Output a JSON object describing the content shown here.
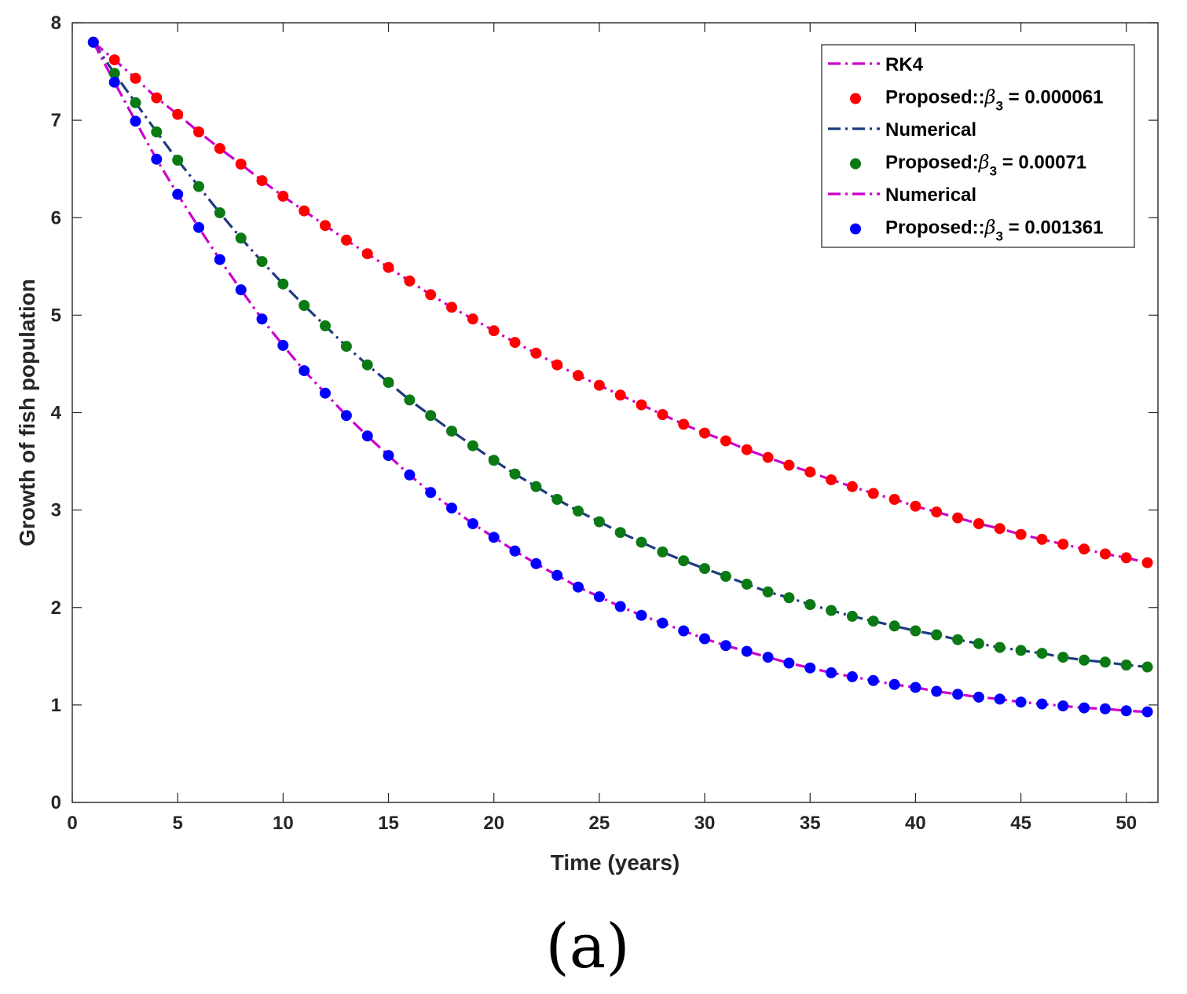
{
  "colors": {
    "magenta": "#CC00CC",
    "navy": "#1F3A80",
    "red": "#FF0000",
    "green": "#0B7A14",
    "blue": "#0000FF",
    "axis": "#262626"
  },
  "caption": "(a)",
  "chart_data": {
    "type": "line",
    "title": "",
    "xlabel": "Time (years)",
    "ylabel": "Growth of fish population",
    "xlim": [
      0,
      51.5
    ],
    "ylim": [
      0,
      8
    ],
    "xticks": [
      0,
      5,
      10,
      15,
      20,
      25,
      30,
      35,
      40,
      45,
      50
    ],
    "yticks": [
      0,
      1,
      2,
      3,
      4,
      5,
      6,
      7,
      8
    ],
    "grid": false,
    "legend_position": "top-right",
    "legend": [
      {
        "label": "RK4",
        "kind": "line",
        "color": "magenta",
        "dash": "dashdot"
      },
      {
        "label": "Proposed::",
        "beta": "β",
        "sub": "3",
        "value": " = 0.000061",
        "kind": "marker",
        "color": "red"
      },
      {
        "label": "Numerical",
        "kind": "line",
        "color": "navy",
        "dash": "dashdot"
      },
      {
        "label": "Proposed:",
        "beta": "β",
        "sub": "3",
        "value": " = 0.00071",
        "kind": "marker",
        "color": "green"
      },
      {
        "label": "Numerical",
        "kind": "line",
        "color": "magenta",
        "dash": "dashdot"
      },
      {
        "label": "Proposed::",
        "beta": "β",
        "sub": "3",
        "value": " = 0.001361",
        "kind": "marker",
        "color": "blue"
      }
    ],
    "x": [
      1,
      2,
      3,
      4,
      5,
      6,
      7,
      8,
      9,
      10,
      11,
      12,
      13,
      14,
      15,
      16,
      17,
      18,
      19,
      20,
      21,
      22,
      23,
      24,
      25,
      26,
      27,
      28,
      29,
      30,
      31,
      32,
      33,
      34,
      35,
      36,
      37,
      38,
      39,
      40,
      41,
      42,
      43,
      44,
      45,
      46,
      47,
      48,
      49,
      50,
      51
    ],
    "series": [
      {
        "name": "RK4",
        "kind": "line",
        "color": "magenta",
        "dash": "dashdot",
        "values": [
          7.8,
          7.62,
          7.43,
          7.23,
          7.06,
          6.88,
          6.71,
          6.55,
          6.38,
          6.22,
          6.07,
          5.92,
          5.77,
          5.63,
          5.49,
          5.35,
          5.21,
          5.08,
          4.96,
          4.84,
          4.72,
          4.61,
          4.49,
          4.38,
          4.28,
          4.18,
          4.08,
          3.98,
          3.88,
          3.79,
          3.71,
          3.62,
          3.54,
          3.46,
          3.39,
          3.31,
          3.24,
          3.17,
          3.11,
          3.04,
          2.98,
          2.92,
          2.86,
          2.81,
          2.75,
          2.7,
          2.65,
          2.6,
          2.55,
          2.51,
          2.46
        ]
      },
      {
        "name": "Proposed::β3 = 0.000061",
        "kind": "marker",
        "color": "red",
        "values": [
          7.8,
          7.62,
          7.43,
          7.23,
          7.06,
          6.88,
          6.71,
          6.55,
          6.38,
          6.22,
          6.07,
          5.92,
          5.77,
          5.63,
          5.49,
          5.35,
          5.21,
          5.08,
          4.96,
          4.84,
          4.72,
          4.61,
          4.49,
          4.38,
          4.28,
          4.18,
          4.08,
          3.98,
          3.88,
          3.79,
          3.71,
          3.62,
          3.54,
          3.46,
          3.39,
          3.31,
          3.24,
          3.17,
          3.11,
          3.04,
          2.98,
          2.92,
          2.86,
          2.81,
          2.75,
          2.7,
          2.65,
          2.6,
          2.55,
          2.51,
          2.46
        ]
      },
      {
        "name": "Numerical",
        "kind": "line",
        "color": "navy",
        "dash": "dashdot",
        "values": [
          7.8,
          7.48,
          7.18,
          6.88,
          6.59,
          6.32,
          6.05,
          5.79,
          5.55,
          5.32,
          5.1,
          4.89,
          4.68,
          4.49,
          4.31,
          4.13,
          3.97,
          3.81,
          3.66,
          3.51,
          3.37,
          3.24,
          3.11,
          2.99,
          2.88,
          2.77,
          2.67,
          2.57,
          2.48,
          2.4,
          2.32,
          2.24,
          2.16,
          2.1,
          2.03,
          1.97,
          1.91,
          1.86,
          1.81,
          1.76,
          1.72,
          1.67,
          1.63,
          1.59,
          1.56,
          1.53,
          1.49,
          1.46,
          1.44,
          1.41,
          1.39
        ]
      },
      {
        "name": "Proposed:β3 = 0.00071",
        "kind": "marker",
        "color": "green",
        "values": [
          7.8,
          7.48,
          7.18,
          6.88,
          6.59,
          6.32,
          6.05,
          5.79,
          5.55,
          5.32,
          5.1,
          4.89,
          4.68,
          4.49,
          4.31,
          4.13,
          3.97,
          3.81,
          3.66,
          3.51,
          3.37,
          3.24,
          3.11,
          2.99,
          2.88,
          2.77,
          2.67,
          2.57,
          2.48,
          2.4,
          2.32,
          2.24,
          2.16,
          2.1,
          2.03,
          1.97,
          1.91,
          1.86,
          1.81,
          1.76,
          1.72,
          1.67,
          1.63,
          1.59,
          1.56,
          1.53,
          1.49,
          1.46,
          1.44,
          1.41,
          1.39
        ]
      },
      {
        "name": "Numerical",
        "kind": "line",
        "color": "magenta",
        "dash": "dashdot",
        "values": [
          7.8,
          7.39,
          6.99,
          6.6,
          6.24,
          5.9,
          5.57,
          5.26,
          4.96,
          4.69,
          4.43,
          4.2,
          3.97,
          3.76,
          3.56,
          3.36,
          3.18,
          3.02,
          2.86,
          2.72,
          2.58,
          2.45,
          2.33,
          2.21,
          2.11,
          2.01,
          1.92,
          1.84,
          1.76,
          1.68,
          1.61,
          1.55,
          1.49,
          1.43,
          1.38,
          1.33,
          1.29,
          1.25,
          1.21,
          1.18,
          1.14,
          1.11,
          1.08,
          1.06,
          1.03,
          1.01,
          0.99,
          0.97,
          0.96,
          0.94,
          0.93
        ]
      },
      {
        "name": "Proposed::β3 = 0.001361",
        "kind": "marker",
        "color": "blue",
        "values": [
          7.8,
          7.39,
          6.99,
          6.6,
          6.24,
          5.9,
          5.57,
          5.26,
          4.96,
          4.69,
          4.43,
          4.2,
          3.97,
          3.76,
          3.56,
          3.36,
          3.18,
          3.02,
          2.86,
          2.72,
          2.58,
          2.45,
          2.33,
          2.21,
          2.11,
          2.01,
          1.92,
          1.84,
          1.76,
          1.68,
          1.61,
          1.55,
          1.49,
          1.43,
          1.38,
          1.33,
          1.29,
          1.25,
          1.21,
          1.18,
          1.14,
          1.11,
          1.08,
          1.06,
          1.03,
          1.01,
          0.99,
          0.97,
          0.96,
          0.94,
          0.93
        ]
      }
    ]
  }
}
